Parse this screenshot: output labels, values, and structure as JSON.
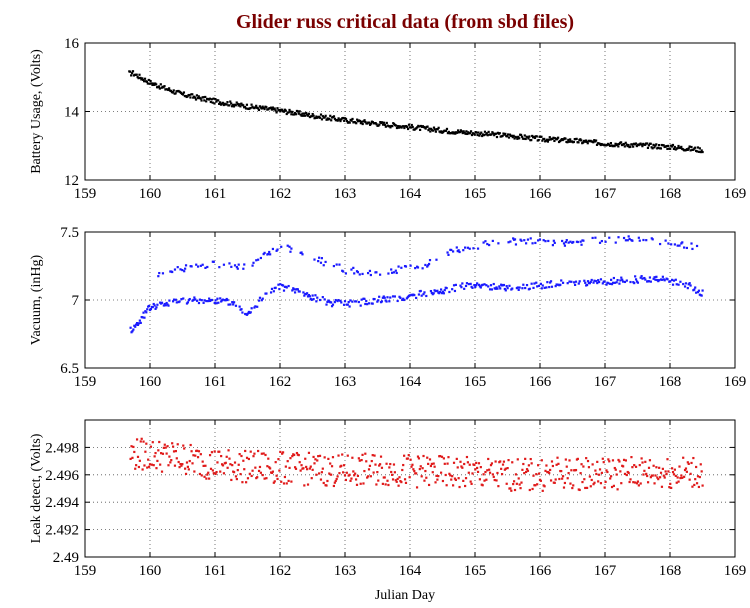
{
  "chart_data": {
    "type": "scatter",
    "title": "Glider russ critical data (from sbd files)",
    "xlabel": "Julian Day",
    "xlim": [
      159,
      169
    ],
    "x_ticks": [
      "159",
      "160",
      "161",
      "162",
      "163",
      "164",
      "165",
      "166",
      "167",
      "168",
      "169"
    ],
    "grid": true,
    "panels": [
      {
        "ylabel": "Battery Usage, (Volts)",
        "ylim": [
          12,
          16
        ],
        "y_ticks": [
          "12",
          "14",
          "16"
        ],
        "y_tick_values": [
          12,
          14,
          16
        ],
        "color": "#000000",
        "series_points": [
          [
            159.68,
            15.12
          ],
          [
            159.7,
            15.1
          ],
          [
            159.72,
            15.14
          ],
          [
            159.85,
            15.0
          ],
          [
            159.9,
            14.95
          ],
          [
            160.0,
            14.85
          ],
          [
            160.2,
            14.7
          ],
          [
            160.5,
            14.5
          ],
          [
            161.0,
            14.3
          ],
          [
            161.5,
            14.15
          ],
          [
            162.0,
            14.03
          ],
          [
            162.5,
            13.88
          ],
          [
            163.0,
            13.75
          ],
          [
            163.5,
            13.65
          ],
          [
            164.0,
            13.55
          ],
          [
            164.5,
            13.45
          ],
          [
            165.0,
            13.37
          ],
          [
            165.5,
            13.3
          ],
          [
            166.0,
            13.2
          ],
          [
            166.5,
            13.15
          ],
          [
            167.0,
            13.07
          ],
          [
            167.5,
            13.02
          ],
          [
            168.0,
            12.97
          ],
          [
            168.5,
            12.88
          ]
        ],
        "noise": 0.07
      },
      {
        "ylabel": "Vacuum, (inHg)",
        "ylim": [
          6.5,
          7.5
        ],
        "y_ticks": [
          "6.5",
          "7",
          "7.5"
        ],
        "y_tick_values": [
          6.5,
          7.0,
          7.5
        ],
        "color": "#1a1aff",
        "series_points": [
          [
            159.7,
            6.78
          ],
          [
            159.8,
            6.82
          ],
          [
            160.0,
            6.95
          ],
          [
            160.2,
            6.97
          ],
          [
            160.5,
            7.0
          ],
          [
            161.0,
            7.0
          ],
          [
            161.3,
            6.98
          ],
          [
            161.45,
            6.9
          ],
          [
            161.6,
            6.95
          ],
          [
            161.8,
            7.05
          ],
          [
            162.0,
            7.1
          ],
          [
            162.2,
            7.08
          ],
          [
            162.5,
            7.02
          ],
          [
            162.8,
            6.98
          ],
          [
            163.0,
            6.97
          ],
          [
            163.5,
            7.0
          ],
          [
            164.0,
            7.03
          ],
          [
            164.4,
            7.06
          ],
          [
            164.8,
            7.1
          ],
          [
            165.2,
            7.1
          ],
          [
            165.7,
            7.09
          ],
          [
            166.2,
            7.12
          ],
          [
            166.7,
            7.12
          ],
          [
            167.2,
            7.14
          ],
          [
            167.7,
            7.16
          ],
          [
            168.0,
            7.14
          ],
          [
            168.3,
            7.1
          ],
          [
            168.5,
            7.05
          ]
        ],
        "upper_band": [
          [
            160.1,
            7.18
          ],
          [
            160.5,
            7.23
          ],
          [
            161.0,
            7.26
          ],
          [
            161.5,
            7.25
          ],
          [
            161.8,
            7.35
          ],
          [
            162.1,
            7.38
          ],
          [
            162.3,
            7.35
          ],
          [
            163.0,
            7.22
          ],
          [
            163.5,
            7.2
          ],
          [
            164.2,
            7.25
          ],
          [
            164.6,
            7.35
          ],
          [
            165.0,
            7.4
          ],
          [
            165.5,
            7.43
          ],
          [
            166.0,
            7.43
          ],
          [
            166.5,
            7.42
          ],
          [
            167.0,
            7.44
          ],
          [
            167.5,
            7.45
          ],
          [
            168.0,
            7.43
          ],
          [
            168.5,
            7.38
          ]
        ],
        "noise": 0.025
      },
      {
        "ylabel": "Leak detect, (Volts)",
        "ylim": [
          2.49,
          2.5
        ],
        "y_ticks": [
          "2.49",
          "2.492",
          "2.494",
          "2.496",
          "2.498"
        ],
        "y_tick_values": [
          2.49,
          2.492,
          2.494,
          2.496,
          2.498
        ],
        "color": "#e01a1a",
        "series_points": [
          [
            159.7,
            2.4975
          ],
          [
            160.0,
            2.4975
          ],
          [
            160.5,
            2.4972
          ],
          [
            161.0,
            2.4968
          ],
          [
            161.5,
            2.4966
          ],
          [
            162.0,
            2.4965
          ],
          [
            162.5,
            2.4964
          ],
          [
            163.0,
            2.4963
          ],
          [
            163.5,
            2.4964
          ],
          [
            164.0,
            2.4963
          ],
          [
            164.5,
            2.4962
          ],
          [
            165.0,
            2.4961
          ],
          [
            165.5,
            2.496
          ],
          [
            166.0,
            2.496
          ],
          [
            166.5,
            2.4961
          ],
          [
            167.0,
            2.4961
          ],
          [
            167.5,
            2.4962
          ],
          [
            168.0,
            2.4962
          ],
          [
            168.5,
            2.4962
          ]
        ],
        "noise": 0.0012
      }
    ]
  }
}
